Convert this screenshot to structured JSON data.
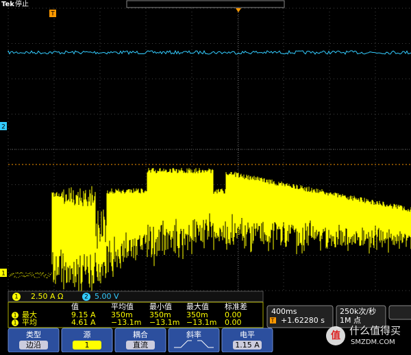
{
  "header": {
    "brand": "Tek",
    "status": "停止",
    "trigger_marker": "T"
  },
  "markers": {
    "ch2": "2",
    "ch1": "1"
  },
  "channels": [
    {
      "id": "1",
      "scale": "2.50 A Ω"
    },
    {
      "id": "2",
      "scale": "5.00 V"
    }
  ],
  "measurements": {
    "columns": [
      "值",
      "平均值",
      "最小值",
      "最大值",
      "标准差"
    ],
    "rows": [
      {
        "channel": "1",
        "name": "最大",
        "cells": [
          "9.15 A",
          "350m",
          "350m",
          "350m",
          "0.00"
        ]
      },
      {
        "channel": "1",
        "name": "平均",
        "cells": [
          "4.61 A",
          "−13.1m",
          "−13.1m",
          "−13.1m",
          "0.00"
        ]
      }
    ]
  },
  "timebase": {
    "scale": "400ms",
    "trigger_icon": "T",
    "position": "+1.62280 s"
  },
  "acquisition": {
    "rate": "250k次/秒",
    "points": "1M 点"
  },
  "menu": [
    {
      "label": "类型",
      "value": "边沿"
    },
    {
      "label": "源",
      "value": "1"
    },
    {
      "label": "耦合",
      "value": "直流"
    },
    {
      "label": "斜率"
    },
    {
      "label": "电平",
      "value": "1.15 A"
    }
  ],
  "watermark": {
    "icon": "值",
    "name": "什么值得买",
    "site": "SMZDM.COM"
  }
}
